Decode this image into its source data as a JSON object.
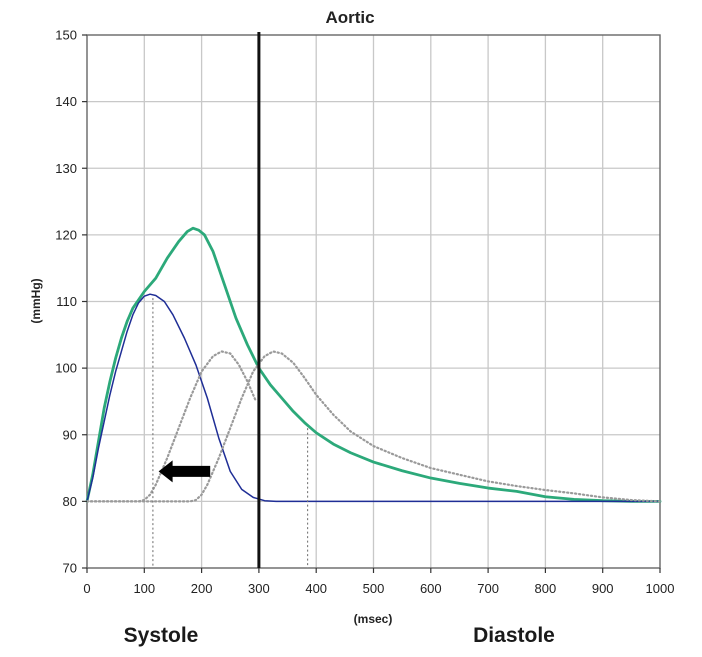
{
  "chart_data": {
    "type": "line",
    "title": "Aortic",
    "xlabel": "(msec)",
    "ylabel": "(mmHg)",
    "xlim": [
      0,
      1000
    ],
    "ylim": [
      70,
      150
    ],
    "x_ticks": [
      0,
      100,
      200,
      300,
      400,
      500,
      600,
      700,
      800,
      900,
      1000
    ],
    "y_ticks": [
      70,
      80,
      90,
      100,
      110,
      120,
      130,
      140,
      150
    ],
    "grid": true,
    "legend": "none",
    "phase_labels": {
      "systole": "Systole",
      "diastole": "Diastole"
    },
    "divider_x": 300,
    "series": [
      {
        "color": "#2ca97a",
        "style": "solid",
        "points": [
          [
            0,
            80
          ],
          [
            10,
            84
          ],
          [
            20,
            89
          ],
          [
            30,
            94
          ],
          [
            40,
            98
          ],
          [
            50,
            101.5
          ],
          [
            60,
            104.5
          ],
          [
            70,
            107
          ],
          [
            80,
            109
          ],
          [
            100,
            111.5
          ],
          [
            120,
            113.5
          ],
          [
            140,
            116.5
          ],
          [
            160,
            119
          ],
          [
            175,
            120.5
          ],
          [
            185,
            121
          ],
          [
            195,
            120.7
          ],
          [
            205,
            120
          ],
          [
            220,
            117.5
          ],
          [
            240,
            112.5
          ],
          [
            260,
            107.5
          ],
          [
            280,
            103.5
          ],
          [
            300,
            100
          ],
          [
            320,
            97.5
          ],
          [
            340,
            95.5
          ],
          [
            360,
            93.5
          ],
          [
            380,
            91.8
          ],
          [
            400,
            90.3
          ],
          [
            430,
            88.6
          ],
          [
            460,
            87.3
          ],
          [
            500,
            85.9
          ],
          [
            550,
            84.6
          ],
          [
            600,
            83.5
          ],
          [
            650,
            82.7
          ],
          [
            700,
            82
          ],
          [
            750,
            81.5
          ],
          [
            800,
            80.7
          ],
          [
            850,
            80.3
          ],
          [
            900,
            80.1
          ],
          [
            950,
            80
          ],
          [
            1000,
            80
          ]
        ]
      },
      {
        "color": "#1f2e96",
        "style": "solid",
        "points": [
          [
            0,
            80
          ],
          [
            10,
            83.5
          ],
          [
            20,
            88
          ],
          [
            30,
            92
          ],
          [
            40,
            96
          ],
          [
            50,
            99.5
          ],
          [
            60,
            102.5
          ],
          [
            70,
            105.5
          ],
          [
            80,
            108
          ],
          [
            90,
            109.8
          ],
          [
            100,
            110.8
          ],
          [
            110,
            111.1
          ],
          [
            120,
            110.9
          ],
          [
            135,
            110
          ],
          [
            150,
            108
          ],
          [
            170,
            104.5
          ],
          [
            190,
            100.5
          ],
          [
            210,
            95.5
          ],
          [
            230,
            89.5
          ],
          [
            250,
            84.5
          ],
          [
            270,
            81.8
          ],
          [
            290,
            80.6
          ],
          [
            310,
            80.1
          ],
          [
            330,
            80
          ],
          [
            1000,
            80
          ]
        ]
      },
      {
        "color": "#9a9a9a",
        "style": "dotted",
        "points": [
          [
            0,
            80
          ],
          [
            90,
            80
          ],
          [
            100,
            80.2
          ],
          [
            110,
            81
          ],
          [
            120,
            82.5
          ],
          [
            140,
            86.5
          ],
          [
            160,
            91
          ],
          [
            180,
            95.5
          ],
          [
            200,
            99.5
          ],
          [
            220,
            101.8
          ],
          [
            235,
            102.5
          ],
          [
            250,
            102.2
          ],
          [
            265,
            100.5
          ],
          [
            280,
            98
          ],
          [
            295,
            95
          ]
        ]
      },
      {
        "color": "#9a9a9a",
        "style": "dotted",
        "points": [
          [
            0,
            80
          ],
          [
            180,
            80
          ],
          [
            190,
            80.2
          ],
          [
            200,
            81
          ],
          [
            210,
            82.5
          ],
          [
            230,
            86.5
          ],
          [
            250,
            91
          ],
          [
            270,
            95.5
          ],
          [
            290,
            99.5
          ],
          [
            310,
            101.8
          ],
          [
            325,
            102.5
          ],
          [
            340,
            102.2
          ],
          [
            360,
            100.8
          ],
          [
            380,
            98.5
          ],
          [
            400,
            96
          ],
          [
            430,
            93
          ],
          [
            460,
            90.5
          ],
          [
            500,
            88.3
          ],
          [
            550,
            86.5
          ],
          [
            600,
            85
          ],
          [
            650,
            84
          ],
          [
            700,
            83
          ],
          [
            750,
            82.3
          ],
          [
            800,
            81.7
          ],
          [
            850,
            81.2
          ],
          [
            900,
            80.6
          ],
          [
            950,
            80.2
          ],
          [
            1000,
            80
          ]
        ]
      }
    ],
    "annotations": [
      {
        "type": "vline-dotted",
        "x": 115,
        "y_top": 110.5
      },
      {
        "type": "vline-dotted",
        "x": 385,
        "y_top": 91
      },
      {
        "type": "arrow-left",
        "x_from": 215,
        "x_to": 125,
        "y": 84.5
      }
    ]
  }
}
